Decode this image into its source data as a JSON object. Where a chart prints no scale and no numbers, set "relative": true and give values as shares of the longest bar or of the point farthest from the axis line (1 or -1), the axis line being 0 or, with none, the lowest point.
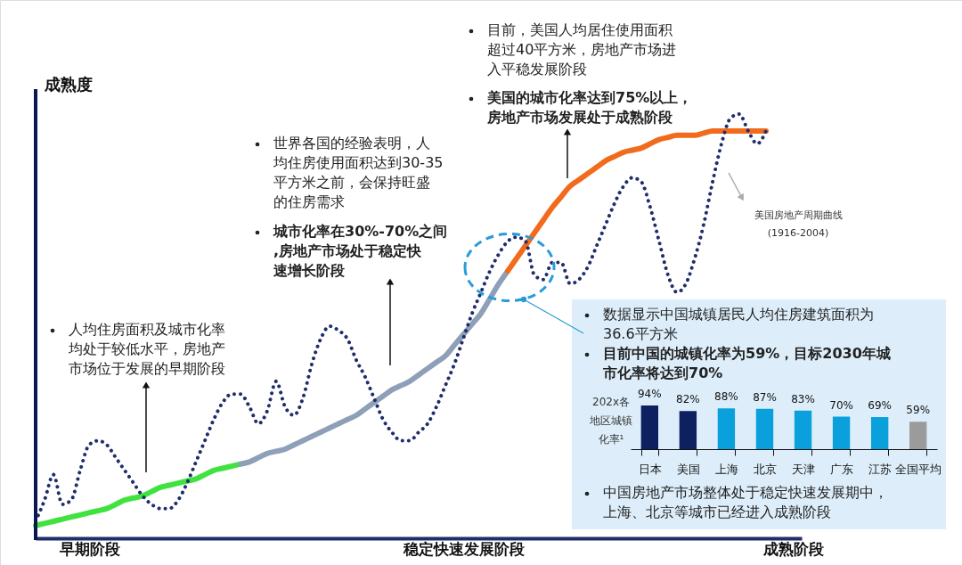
{
  "chart_data": [
    {
      "type": "line",
      "relative": true,
      "ylabel": "成熟度",
      "categories": [
        null,
        null,
        null,
        null,
        null,
        null,
        "早期阶段",
        null,
        null,
        null,
        null,
        null,
        null,
        null,
        null,
        null,
        null,
        null,
        null,
        null,
        null,
        null,
        null,
        null,
        null,
        null,
        null,
        null,
        null,
        null,
        null,
        null,
        null,
        null,
        null,
        null,
        null,
        null,
        null,
        null,
        null,
        null,
        null,
        null,
        null,
        null,
        null,
        null,
        "稳定快速发展阶段",
        null,
        null,
        null,
        null,
        null,
        null,
        null,
        null,
        null,
        null,
        null,
        null,
        null,
        null,
        null,
        null,
        null,
        null,
        null,
        null,
        null,
        null,
        null,
        null,
        null,
        null,
        null,
        null,
        null,
        null,
        null,
        null,
        null,
        null,
        null,
        null,
        "成熟阶段",
        null
      ],
      "series": [
        {
          "color": "#3fe23f",
          "line_style": "solid",
          "values": [
            0.03,
            0.035,
            0.04,
            0.045,
            0.05,
            0.055,
            0.06,
            0.065,
            0.07,
            0.08,
            0.09,
            0.095,
            0.1,
            0.11,
            0.12,
            0.125,
            0.13,
            0.135,
            0.14,
            0.15,
            0.16,
            0.165,
            0.17,
            0.175,
            null,
            null,
            null,
            null,
            null,
            null,
            null,
            null,
            null,
            null,
            null,
            null,
            null,
            null,
            null,
            null,
            null,
            null,
            null,
            null,
            null,
            null,
            null,
            null,
            null,
            null,
            null,
            null,
            null,
            null,
            null,
            null,
            null,
            null,
            null,
            null,
            null,
            null,
            null,
            null,
            null,
            null,
            null,
            null,
            null,
            null,
            null,
            null,
            null,
            null,
            null,
            null,
            null,
            null,
            null,
            null,
            null,
            null,
            null,
            null,
            null,
            null,
            null
          ]
        },
        {
          "color": "#8e9fb8",
          "line_style": "solid",
          "values": [
            null,
            null,
            null,
            null,
            null,
            null,
            null,
            null,
            null,
            null,
            null,
            null,
            null,
            null,
            null,
            null,
            null,
            null,
            null,
            null,
            null,
            null,
            null,
            0.175,
            0.18,
            0.19,
            0.2,
            0.205,
            0.21,
            0.22,
            0.23,
            0.24,
            0.25,
            0.26,
            0.27,
            0.28,
            0.29,
            0.305,
            0.32,
            0.335,
            0.35,
            0.36,
            0.37,
            0.385,
            0.4,
            0.415,
            0.43,
            0.455,
            0.48,
            0.505,
            0.53,
            0.565,
            0.6,
            0.63,
            null,
            null,
            null,
            null,
            null,
            null,
            null,
            null,
            null,
            null,
            null,
            null,
            null,
            null,
            null,
            null,
            null,
            null,
            null,
            null,
            null,
            null,
            null,
            null,
            null,
            null,
            null,
            null,
            null,
            null,
            null,
            null,
            null
          ]
        },
        {
          "color": "#f26a1b",
          "line_style": "solid",
          "values": [
            null,
            null,
            null,
            null,
            null,
            null,
            null,
            null,
            null,
            null,
            null,
            null,
            null,
            null,
            null,
            null,
            null,
            null,
            null,
            null,
            null,
            null,
            null,
            null,
            null,
            null,
            null,
            null,
            null,
            null,
            null,
            null,
            null,
            null,
            null,
            null,
            null,
            null,
            null,
            null,
            null,
            null,
            null,
            null,
            null,
            null,
            null,
            null,
            null,
            null,
            null,
            null,
            null,
            0.63,
            0.66,
            0.69,
            0.72,
            0.75,
            0.78,
            0.805,
            0.83,
            0.845,
            0.86,
            0.875,
            0.89,
            0.9,
            0.91,
            0.915,
            0.92,
            0.93,
            0.94,
            0.945,
            0.95,
            0.95,
            0.95,
            0.955,
            0.96,
            0.96,
            0.96,
            0.96,
            0.96,
            0.96,
            0.96,
            null,
            null,
            null,
            null
          ]
        },
        {
          "name": "美国房地产周期曲线 (1916-2004)",
          "color": "#1f2d6b",
          "line_style": "dotted",
          "values": [
            0.04,
            0.09,
            0.15,
            0.08,
            0.09,
            0.16,
            0.22,
            0.23,
            0.22,
            0.19,
            0.16,
            0.13,
            0.1,
            0.08,
            0.07,
            0.07,
            0.09,
            0.13,
            0.18,
            0.23,
            0.28,
            0.32,
            0.34,
            0.34,
            0.31,
            0.27,
            0.3,
            0.37,
            0.31,
            0.29,
            0.33,
            0.41,
            0.47,
            0.5,
            0.49,
            0.47,
            0.42,
            0.38,
            0.33,
            0.28,
            0.25,
            0.23,
            0.23,
            0.25,
            0.27,
            0.31,
            0.36,
            0.41,
            0.47,
            0.53,
            0.58,
            0.63,
            0.67,
            0.7,
            0.71,
            0.7,
            0.62,
            0.61,
            0.65,
            0.65,
            0.6,
            0.61,
            0.64,
            0.69,
            0.74,
            0.79,
            0.83,
            0.85,
            0.84,
            0.78,
            0.7,
            0.62,
            0.58,
            0.6,
            0.66,
            0.74,
            0.84,
            0.93,
            0.99,
            1.0,
            0.96,
            0.93,
            0.96,
            null,
            null,
            null,
            null
          ]
        }
      ],
      "annotations": [
        "目前，美国人均居住使用面积超过40平方米，房地产市场进入平稳发展阶段",
        "美国的城市化率达到75%以上，房地产市场发展处于成熟阶段",
        "世界各国的经验表明，人均住房使用面积达到30-35平方米之前，会保持旺盛的住房需求",
        "城市化率在30%-70%之间,房地产市场处于稳定快速增长阶段",
        "人均住房面积及城市化率均处于较低水平，房地产市场位于发展的早期阶段"
      ]
    },
    {
      "type": "bar",
      "ylabel": "202x各地区城镇化率¹",
      "categories": [
        "日本",
        "美国",
        "上海",
        "北京",
        "天津",
        "广东",
        "江苏",
        "全国平均"
      ],
      "values": [
        94,
        82,
        88,
        87,
        83,
        70,
        69,
        59
      ],
      "value_labels": [
        "94%",
        "82%",
        "88%",
        "87%",
        "83%",
        "70%",
        "69%",
        "59%"
      ],
      "colors": [
        "#0f2060",
        "#0f2060",
        "#0aa0dc",
        "#0aa0dc",
        "#0aa0dc",
        "#0aa0dc",
        "#0aa0dc",
        "#9b9b9b"
      ],
      "annotations": [
        "数据显示中国城镇居民人均住房建筑面积为36.6平方米",
        "目前中国的城镇化率为59%，目标2030年城市化率将达到70%",
        "中国房地产市场整体处于稳定快速发展期中，上海、北京等城市已经进入成熟阶段"
      ]
    }
  ]
}
